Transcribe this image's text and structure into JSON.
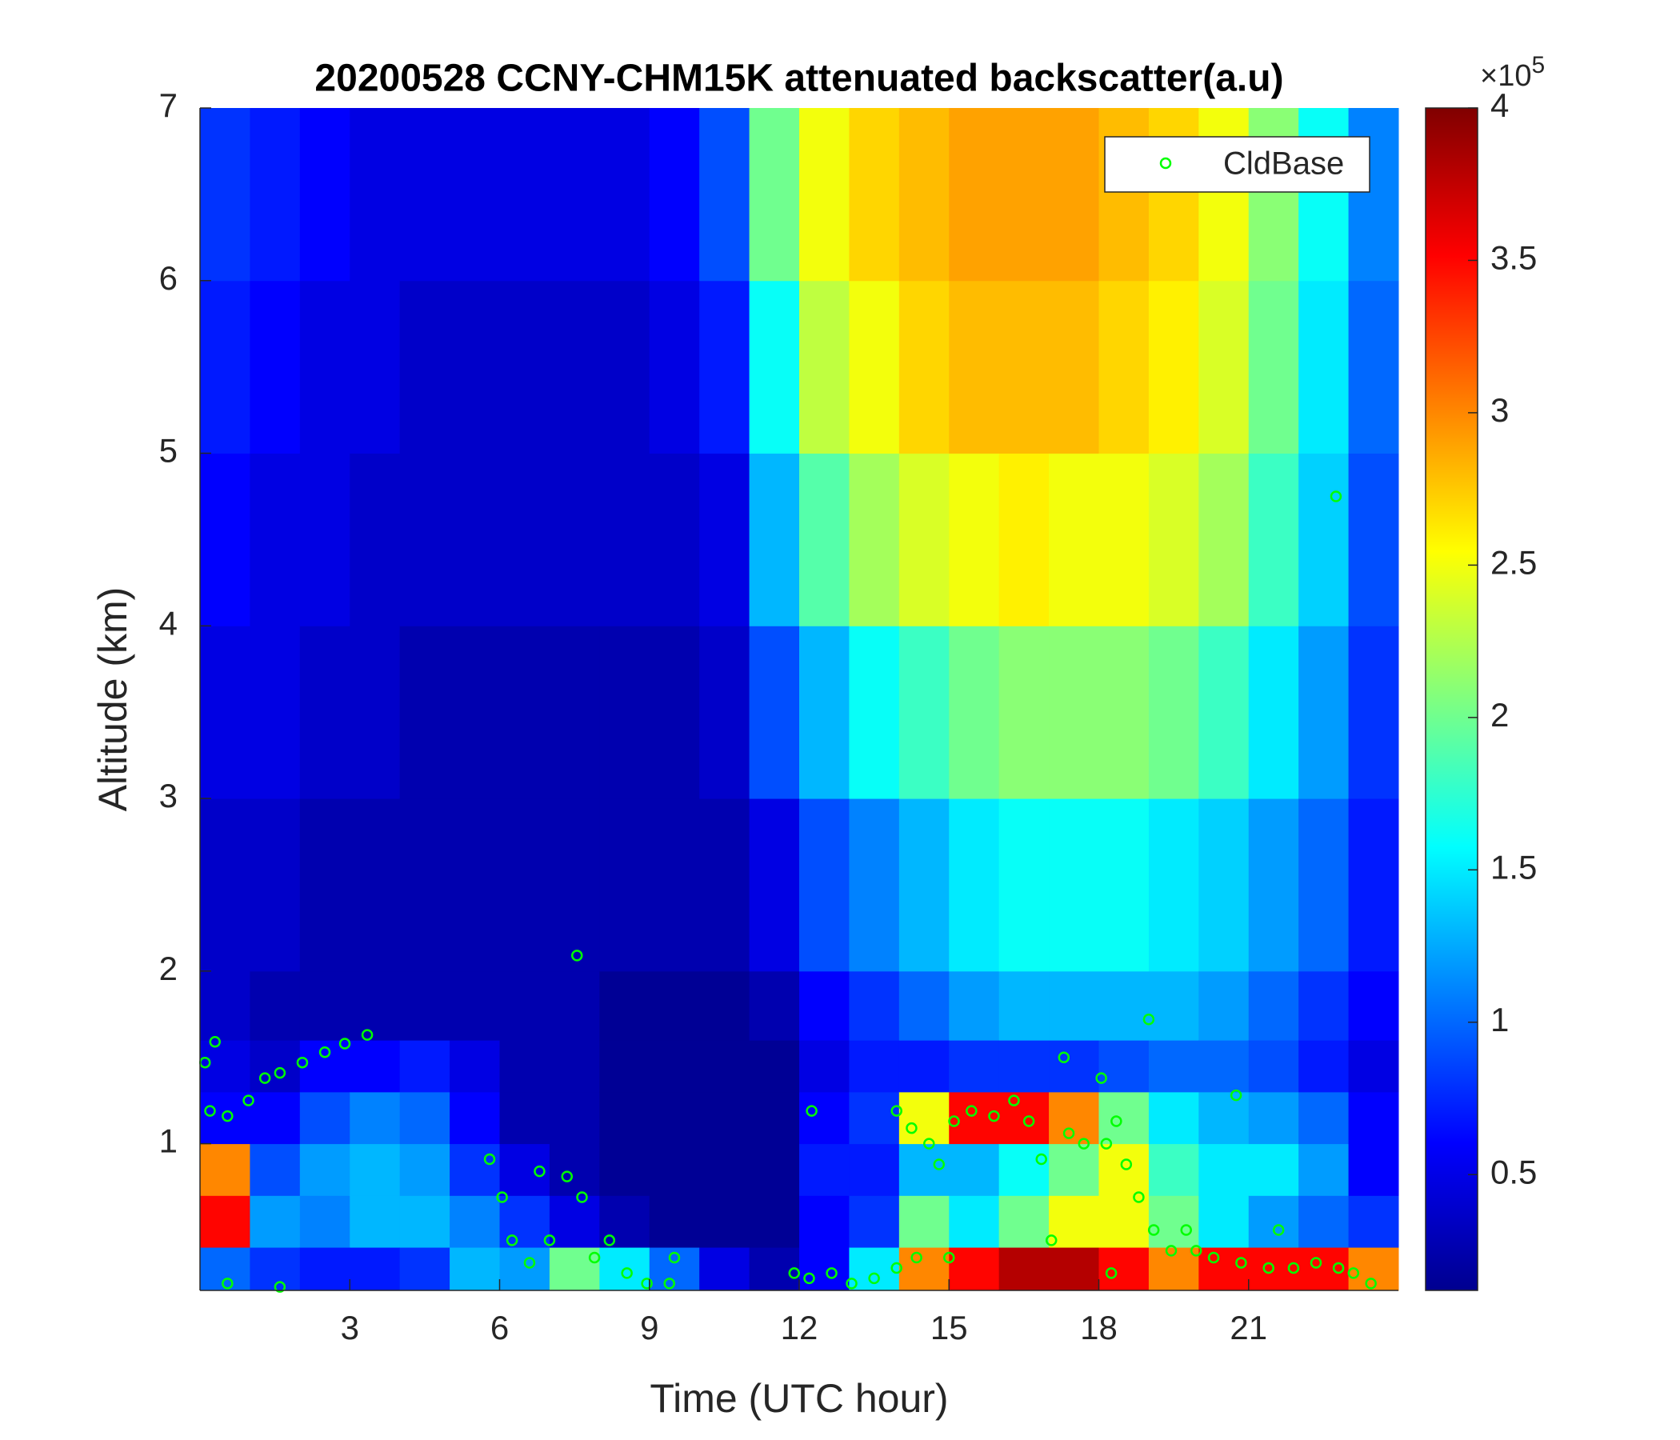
{
  "chart_data": {
    "type": "heatmap",
    "title": "20200528 CCNY-CHM15K attenuated backscatter(a.u)",
    "xlabel": "Time (UTC hour)",
    "ylabel": "Altitude (km)",
    "xlim": [
      0,
      24
    ],
    "ylim": [
      0.15,
      7
    ],
    "xticks": [
      3,
      6,
      9,
      12,
      15,
      18,
      21
    ],
    "yticks": [
      1,
      2,
      3,
      4,
      5,
      6,
      7
    ],
    "colormap": "jet",
    "zlim": [
      0.12,
      4
    ],
    "zticks": [
      0.5,
      1,
      1.5,
      2,
      2.5,
      3,
      3.5,
      4
    ],
    "colorbar_multiplier": {
      "base": "×10",
      "exponent": "5"
    },
    "legend": "upper right",
    "x_edges": [
      0,
      1,
      2,
      3,
      4,
      5,
      6,
      7,
      8,
      9,
      10,
      11,
      12,
      13,
      14,
      15,
      16,
      17,
      18,
      19,
      20,
      21,
      22,
      23,
      24
    ],
    "y_edges": [
      0.15,
      0.4,
      0.7,
      1.0,
      1.3,
      1.6,
      2,
      3,
      4,
      5,
      6,
      7
    ],
    "z": [
      [
        1.0,
        3.5,
        3.0,
        0.6,
        0.5,
        0.4,
        0.4,
        0.5,
        0.6,
        0.7,
        0.8
      ],
      [
        0.8,
        1.2,
        0.9,
        0.6,
        0.4,
        0.3,
        0.4,
        0.5,
        0.5,
        0.6,
        0.7
      ],
      [
        0.7,
        1.1,
        1.2,
        0.9,
        0.6,
        0.3,
        0.3,
        0.4,
        0.5,
        0.5,
        0.6
      ],
      [
        0.7,
        1.3,
        1.3,
        1.1,
        0.6,
        0.3,
        0.3,
        0.4,
        0.4,
        0.5,
        0.5
      ],
      [
        0.8,
        1.3,
        1.2,
        1.0,
        0.7,
        0.3,
        0.3,
        0.3,
        0.4,
        0.4,
        0.5
      ],
      [
        1.3,
        1.1,
        0.8,
        0.6,
        0.5,
        0.3,
        0.3,
        0.3,
        0.4,
        0.4,
        0.5
      ],
      [
        1.2,
        0.8,
        0.5,
        0.3,
        0.3,
        0.3,
        0.3,
        0.3,
        0.4,
        0.4,
        0.5
      ],
      [
        2.0,
        0.5,
        0.3,
        0.3,
        0.3,
        0.3,
        0.3,
        0.3,
        0.4,
        0.4,
        0.5
      ],
      [
        1.5,
        0.3,
        0.2,
        0.2,
        0.2,
        0.2,
        0.3,
        0.3,
        0.4,
        0.4,
        0.5
      ],
      [
        1.0,
        0.2,
        0.2,
        0.2,
        0.2,
        0.2,
        0.3,
        0.3,
        0.4,
        0.5,
        0.6
      ],
      [
        0.5,
        0.2,
        0.2,
        0.2,
        0.2,
        0.2,
        0.3,
        0.4,
        0.5,
        0.7,
        0.9
      ],
      [
        0.3,
        0.2,
        0.2,
        0.2,
        0.2,
        0.3,
        0.5,
        0.9,
        1.3,
        1.6,
        2.0
      ],
      [
        0.6,
        0.6,
        0.7,
        0.6,
        0.5,
        0.6,
        0.9,
        1.3,
        1.9,
        2.3,
        2.5
      ],
      [
        1.5,
        0.8,
        0.7,
        0.8,
        0.7,
        0.8,
        1.1,
        1.6,
        2.2,
        2.5,
        2.7
      ],
      [
        3.0,
        2.0,
        1.3,
        2.5,
        0.7,
        1.0,
        1.3,
        1.8,
        2.4,
        2.7,
        2.8
      ],
      [
        3.5,
        1.5,
        1.3,
        3.5,
        0.8,
        1.2,
        1.5,
        2.0,
        2.5,
        2.8,
        2.9
      ],
      [
        3.8,
        2.0,
        1.6,
        3.5,
        0.8,
        1.3,
        1.6,
        2.1,
        2.6,
        2.8,
        2.9
      ],
      [
        3.8,
        2.5,
        2.0,
        3.0,
        0.8,
        1.3,
        1.6,
        2.1,
        2.5,
        2.8,
        2.9
      ],
      [
        3.5,
        2.5,
        2.5,
        2.0,
        0.9,
        1.3,
        1.6,
        2.1,
        2.5,
        2.7,
        2.8
      ],
      [
        3.0,
        2.0,
        1.8,
        1.5,
        1.0,
        1.3,
        1.5,
        2.0,
        2.4,
        2.6,
        2.7
      ],
      [
        3.5,
        1.5,
        1.5,
        1.3,
        1.0,
        1.2,
        1.4,
        1.8,
        2.2,
        2.4,
        2.5
      ],
      [
        3.5,
        1.2,
        1.5,
        1.2,
        0.9,
        1.0,
        1.2,
        1.5,
        1.8,
        2.0,
        2.1
      ],
      [
        3.5,
        1.0,
        1.2,
        1.0,
        0.7,
        0.8,
        1.0,
        1.2,
        1.4,
        1.5,
        1.6
      ],
      [
        3.0,
        0.8,
        0.6,
        0.6,
        0.5,
        0.6,
        0.7,
        0.8,
        0.9,
        1.0,
        1.1
      ]
    ],
    "series": [
      {
        "name": "CldBase",
        "type": "scatter",
        "color": "#00ff00",
        "x": [
          0.1,
          0.3,
          0.2,
          0.55,
          0.97,
          1.3,
          1.6,
          2.05,
          2.5,
          2.9,
          3.35,
          0.55,
          1.6,
          5.8,
          6.05,
          6.25,
          6.6,
          6.8,
          7.0,
          7.35,
          7.55,
          7.65,
          7.9,
          8.2,
          8.55,
          8.95,
          9.4,
          9.5,
          11.9,
          12.2,
          12.25,
          12.65,
          13.05,
          13.5,
          13.95,
          13.95,
          14.25,
          14.35,
          14.6,
          14.8,
          15.0,
          15.1,
          15.45,
          15.9,
          16.3,
          16.6,
          16.85,
          17.05,
          17.3,
          17.4,
          17.7,
          18.05,
          18.15,
          18.25,
          18.35,
          18.55,
          18.8,
          19.0,
          19.1,
          19.45,
          19.75,
          19.95,
          20.3,
          20.75,
          20.85,
          21.4,
          21.6,
          21.9,
          22.35,
          22.75,
          22.8,
          23.1,
          23.45
        ],
        "values": [
          1.47,
          1.59,
          1.19,
          1.16,
          1.25,
          1.38,
          1.41,
          1.47,
          1.53,
          1.58,
          1.63,
          0.19,
          0.17,
          0.91,
          0.69,
          0.44,
          0.31,
          0.84,
          0.44,
          0.81,
          2.09,
          0.69,
          0.34,
          0.44,
          0.25,
          0.19,
          0.19,
          0.34,
          0.25,
          0.22,
          1.19,
          0.25,
          0.19,
          0.22,
          0.28,
          1.19,
          1.09,
          0.34,
          1.0,
          0.88,
          0.34,
          1.13,
          1.19,
          1.16,
          1.25,
          1.13,
          0.91,
          0.44,
          1.5,
          1.06,
          1.0,
          1.38,
          1.0,
          0.25,
          1.13,
          0.88,
          0.69,
          1.72,
          0.5,
          0.38,
          0.5,
          0.38,
          0.34,
          1.28,
          0.31,
          0.28,
          0.5,
          0.28,
          0.31,
          4.75,
          0.28,
          0.25,
          0.19
        ]
      }
    ]
  }
}
